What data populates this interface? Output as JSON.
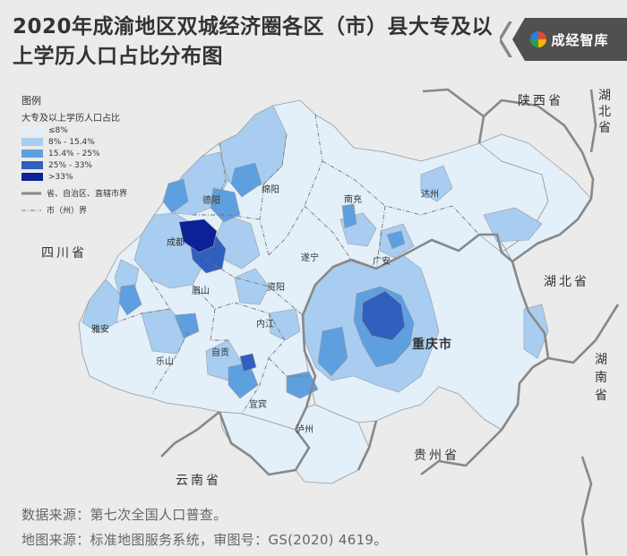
{
  "title": "2020年成渝地区双城经济圈各区（市）县大专及以上学历人口占比分布图",
  "logo_text": "成经智库",
  "legend": {
    "heading": "图例",
    "subtitle": "大专及以上学历人口占比",
    "classes": [
      {
        "label": "≤8%",
        "color": "#e3eff9"
      },
      {
        "label": "8% - 15.4%",
        "color": "#a8cdf1"
      },
      {
        "label": "15.4% - 25%",
        "color": "#5e9fe0"
      },
      {
        "label": "25% - 33%",
        "color": "#2f5fbf"
      },
      {
        "label": ">33%",
        "color": "#0a2296"
      }
    ],
    "province_boundary": "省、自治区、直辖市界",
    "city_boundary": "市（州）界"
  },
  "regions": {
    "shaanxi": "陕西省",
    "sichuan": "四川省",
    "hubei_ne": "湖北省",
    "hubei": "湖北省",
    "hunan": "湖南省",
    "guizhou": "贵州省",
    "yunnan": "云南省",
    "chongqing": "重庆市"
  },
  "cities": {
    "chengdu": "成都",
    "deyang": "德阳",
    "mianyang": "绵阳",
    "nanchong": "南充",
    "dazhou": "达州",
    "suining": "遂宁",
    "guangan": "广安",
    "meishan": "眉山",
    "ziyang": "资阳",
    "yaan": "雅安",
    "neijiang": "内江",
    "zigong": "自贡",
    "leshan": "乐山",
    "yibin": "宜宾",
    "luzhou": "泸州"
  },
  "sources": {
    "data": "数据来源：第七次全国人口普查。",
    "map": "地图来源：标准地图服务系统，审图号：GS(2020) 4619。"
  }
}
